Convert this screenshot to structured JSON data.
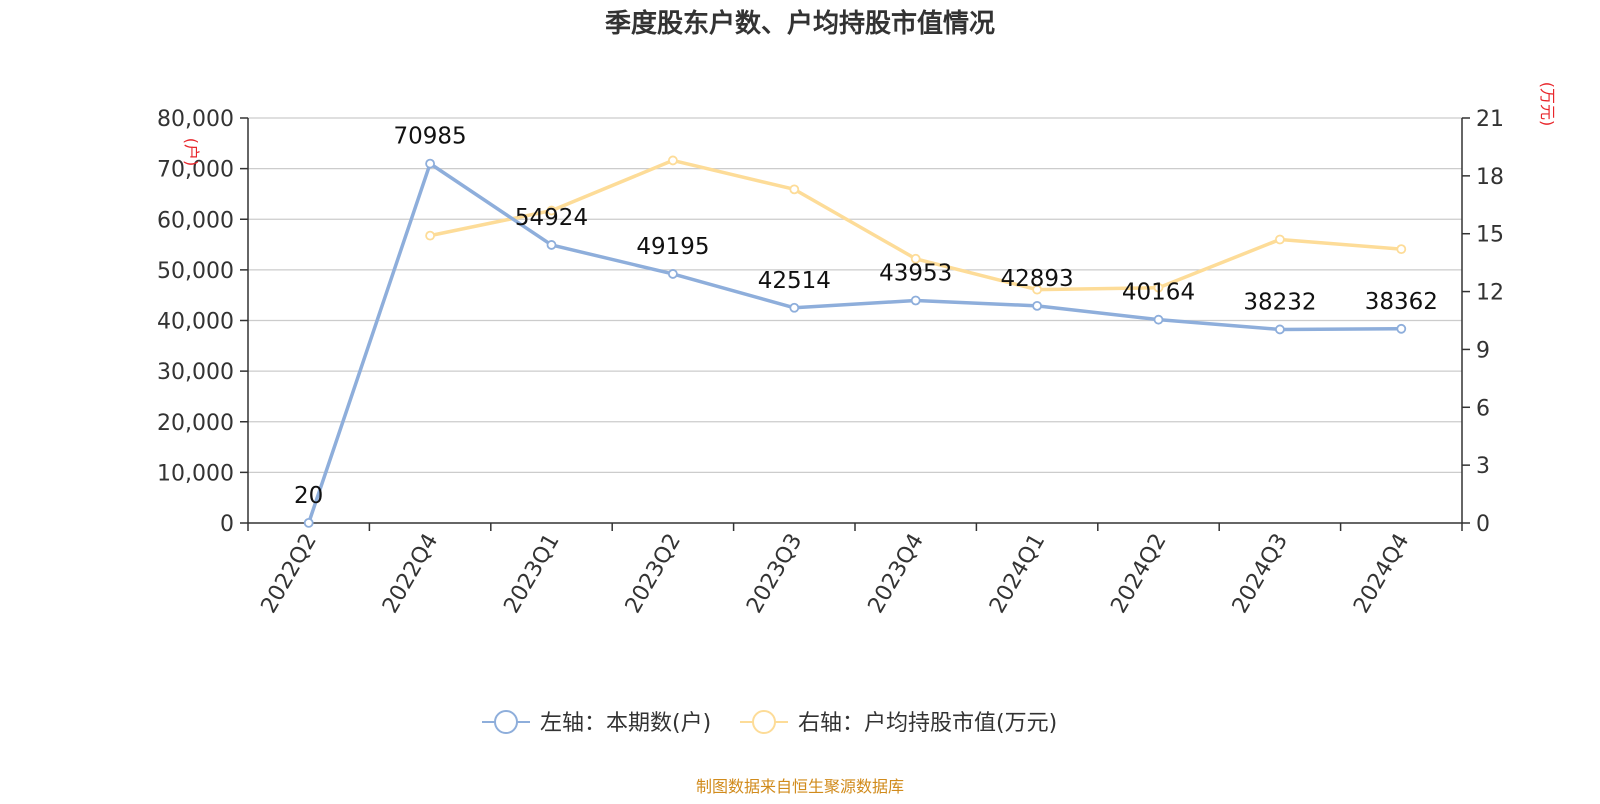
{
  "chart_data": {
    "type": "line",
    "title": "季度股东户数、户均持股市值情况",
    "categories": [
      "2022Q2",
      "2022Q4",
      "2023Q1",
      "2023Q2",
      "2023Q3",
      "2023Q4",
      "2024Q1",
      "2024Q2",
      "2024Q3",
      "2024Q4"
    ],
    "left_axis": {
      "unit_label": "(户)",
      "range": [
        0,
        80000
      ],
      "ticks": [
        "0",
        "10,000",
        "20,000",
        "30,000",
        "40,000",
        "50,000",
        "60,000",
        "70,000",
        "80,000"
      ]
    },
    "right_axis": {
      "unit_label": "(万元)",
      "range": [
        0,
        21
      ],
      "ticks": [
        "0",
        "3",
        "6",
        "9",
        "12",
        "15",
        "18",
        "21"
      ]
    },
    "grid": true,
    "legend_position": "bottom",
    "series": [
      {
        "name": "左轴：本期数(户)",
        "axis": "left",
        "color": "#8eaedb",
        "values": [
          20,
          70985,
          54924,
          49195,
          42514,
          43953,
          42893,
          40164,
          38232,
          38362
        ],
        "labels": [
          "20",
          "70985",
          "54924",
          "49195",
          "42514",
          "43953",
          "42893",
          "40164",
          "38232",
          "38362"
        ]
      },
      {
        "name": "右轴：户均持股市值(万元)",
        "axis": "right",
        "color": "#fddc98",
        "values": [
          null,
          14.9,
          16.2,
          18.8,
          17.3,
          13.7,
          12.1,
          12.2,
          14.7,
          14.2
        ]
      }
    ],
    "source": "制图数据来自恒生聚源数据库",
    "colors": {
      "unit_label": "#e8262b",
      "source": "#d18b1c",
      "axis": "#333333",
      "grid": "#cccccc"
    }
  }
}
